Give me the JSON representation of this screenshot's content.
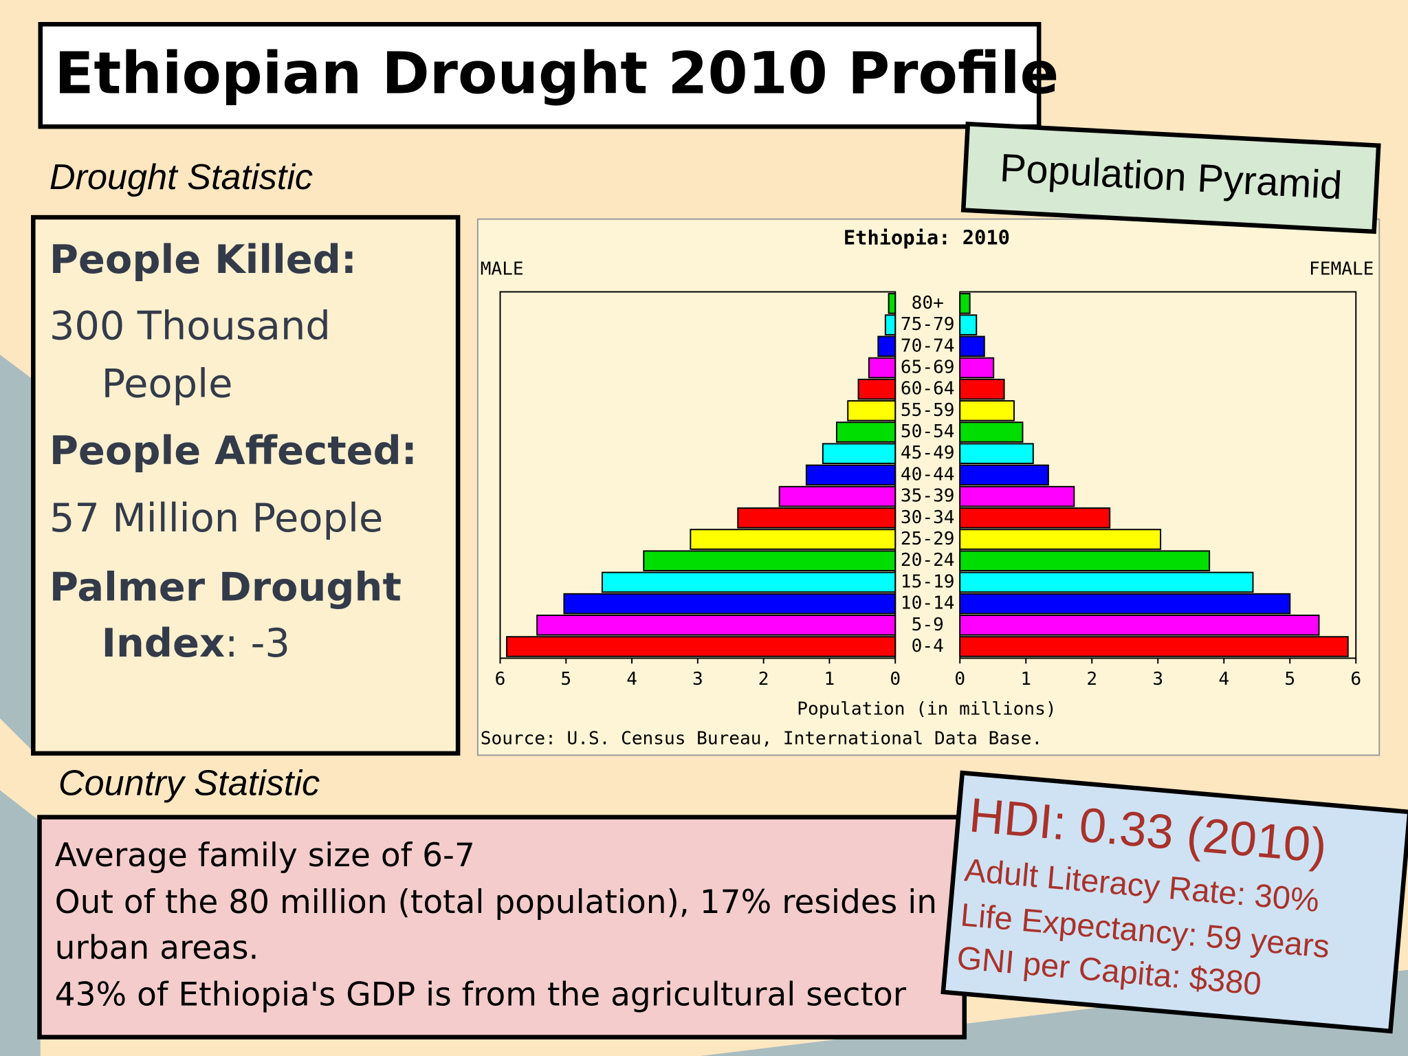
{
  "header": {
    "title": "Ethiopian Drought 2010 Profile"
  },
  "drought": {
    "heading": "Drought Statistic",
    "items": [
      {
        "label": [
          "People Killed:"
        ],
        "value": [
          "300 Thousand",
          "People"
        ]
      },
      {
        "label": [
          "People Affected:"
        ],
        "value": [
          "57 Million People"
        ]
      },
      {
        "label": [
          "Palmer Drought",
          "Index"
        ],
        "value": [
          ": -3"
        ]
      }
    ]
  },
  "pyramid_heading": "Population Pyramid",
  "country": {
    "heading": "Country Statistic",
    "lines": [
      "Average family size of 6-7",
      "Out of the 80 million (total population), 17% resides in",
      "urban areas.",
      "43% of Ethiopia's GDP is from the agricultural sector"
    ]
  },
  "hdi": {
    "title": "HDI: 0.33 (2010)",
    "lines": [
      "Adult Literacy Rate: 30%",
      "Life Expectancy: 59 years",
      "GNI per Capita: $380"
    ]
  },
  "chart_data": {
    "type": "pyramid",
    "title": "Ethiopia: 2010",
    "categories": [
      "80+",
      "75-79",
      "70-74",
      "65-69",
      "60-64",
      "55-59",
      "50-54",
      "45-49",
      "40-44",
      "35-39",
      "30-34",
      "25-29",
      "20-24",
      "15-19",
      "10-14",
      "5-9",
      "0-4"
    ],
    "colors": [
      "#00dd00",
      "#00ffff",
      "#0000ff",
      "#ff00ff",
      "#ff0000",
      "#ffff00",
      "#00dd00",
      "#00ffff",
      "#0000ff",
      "#ff00ff",
      "#ff0000",
      "#ffff00",
      "#00dd00",
      "#00ffff",
      "#0000ff",
      "#ff00ff",
      "#ff0000"
    ],
    "series": [
      {
        "name": "MALE",
        "values": [
          0.1,
          0.15,
          0.26,
          0.4,
          0.56,
          0.72,
          0.89,
          1.1,
          1.35,
          1.76,
          2.39,
          3.11,
          3.82,
          4.45,
          5.03,
          5.44,
          5.9
        ]
      },
      {
        "name": "FEMALE",
        "values": [
          0.15,
          0.25,
          0.37,
          0.51,
          0.67,
          0.82,
          0.95,
          1.11,
          1.34,
          1.73,
          2.27,
          3.04,
          3.78,
          4.44,
          5.0,
          5.44,
          5.88
        ]
      }
    ],
    "xlim": [
      0,
      6
    ],
    "xticks": [
      0,
      1,
      2,
      3,
      4,
      5,
      6
    ],
    "xlabel": "Population (in millions)",
    "source": "Source: U.S. Census Bureau, International Data Base."
  }
}
